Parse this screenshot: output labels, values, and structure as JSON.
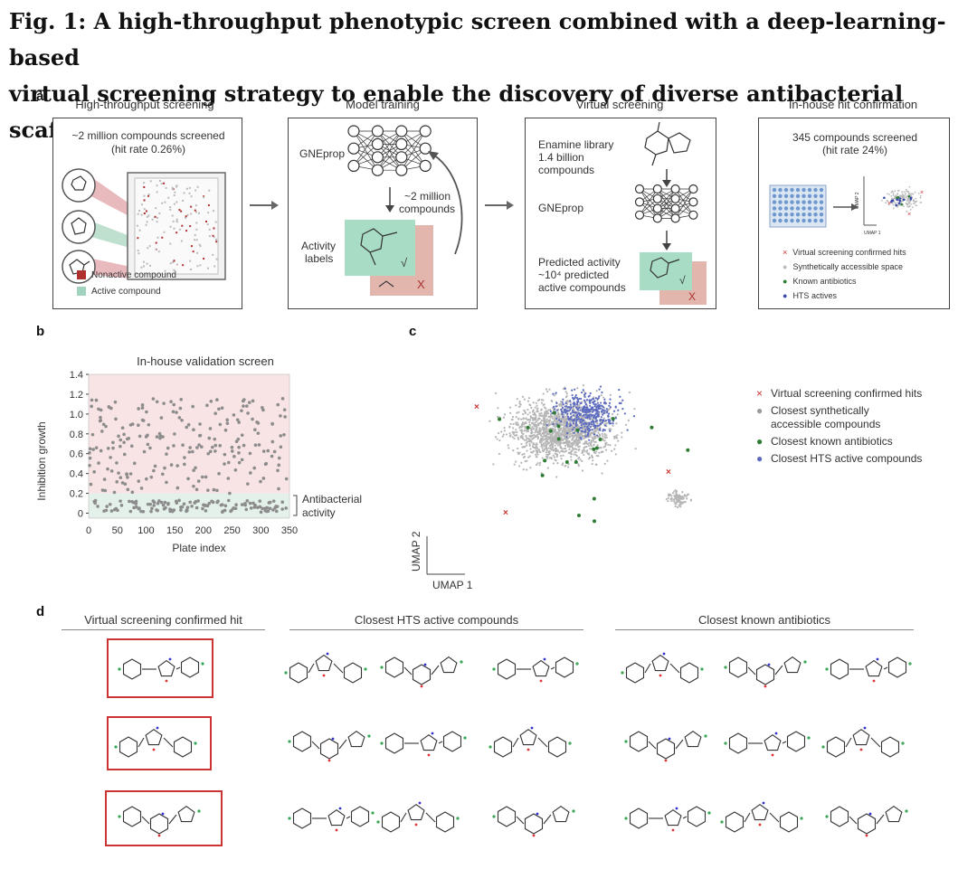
{
  "figure": {
    "title_line1": "Fig. 1: A high-throughput phenotypic screen combined with a deep-learning-based",
    "title_line2": "virtual screening strategy to enable the discovery of diverse antibacterial scaffolds."
  },
  "panel_a": {
    "label": "a",
    "hts": {
      "heading": "High-throughput screening",
      "line1": "~2 million compounds screened",
      "line2": "(hit rate 0.26%)",
      "legend_nonactive": "Nonactive compound",
      "legend_active": "Active compound"
    },
    "training": {
      "heading": "Model training",
      "model": "GNEprop",
      "compounds1": "~2 million",
      "compounds2": "compounds",
      "activity1": "Activity",
      "activity2": "labels",
      "check": "√",
      "cross": "X"
    },
    "virtual": {
      "heading": "Virtual screening",
      "lib1": "Enamine library",
      "lib2": "1.4 billion",
      "lib3": "compounds",
      "model": "GNEprop",
      "pred1": "Predicted activity",
      "pred2": "~10⁴ predicted",
      "pred3": "active compounds",
      "check": "√",
      "cross": "X"
    },
    "confirm": {
      "heading": "In-house hit confirmation",
      "line1": "345 compounds screened",
      "line2": "(hit rate 24%)",
      "umap2": "UMAP 2",
      "umap1": "UMAP 1",
      "legend": [
        {
          "marker": "×",
          "text": "Virtual screening confirmed hits",
          "color": "#cc3333"
        },
        {
          "marker": "●",
          "text": "Synthetically accessible space",
          "color": "#bbbbbb"
        },
        {
          "marker": "●",
          "text": "Known antibiotics",
          "color": "#2e7d32"
        },
        {
          "marker": "●",
          "text": "HTS actives",
          "color": "#3949ab"
        }
      ]
    }
  },
  "panel_b": {
    "label": "b",
    "chart_data": {
      "type": "scatter",
      "title": "In-house validation screen",
      "xlabel": "Plate index",
      "ylabel": "Inhibition growth",
      "xlim": [
        0,
        350
      ],
      "ylim": [
        -0.05,
        1.4
      ],
      "xticks": [
        0,
        50,
        100,
        150,
        200,
        250,
        300,
        350
      ],
      "yticks": [
        0,
        0.2,
        0.4,
        0.6,
        0.8,
        1.0,
        1.2,
        1.4
      ],
      "annotation": [
        "Antibacterial",
        "activity"
      ],
      "bands": [
        {
          "from": 0.2,
          "to": 1.4,
          "color": "#f8e3e5"
        },
        {
          "from": -0.05,
          "to": 0.2,
          "color": "#e4f1ea"
        }
      ],
      "points_note": "approximate"
    }
  },
  "panel_c": {
    "label": "c",
    "umap2": "UMAP 2",
    "umap1": "UMAP 1",
    "legend": [
      {
        "marker": "×",
        "lines": [
          "Virtual screening confirmed hits"
        ],
        "color": "#cc3333"
      },
      {
        "marker": "●",
        "lines": [
          "Closest synthetically",
          "accessible compounds"
        ],
        "color": "#999999"
      },
      {
        "marker": "●",
        "lines": [
          "Closest known antibiotics"
        ],
        "color": "#2e7d32"
      },
      {
        "marker": "●",
        "lines": [
          "Closest HTS active compounds"
        ],
        "color": "#5c6bc0"
      }
    ]
  },
  "panel_d": {
    "label": "d",
    "col1": "Virtual screening confirmed hit",
    "col2": "Closest HTS active compounds",
    "col3": "Closest known antibiotics"
  }
}
